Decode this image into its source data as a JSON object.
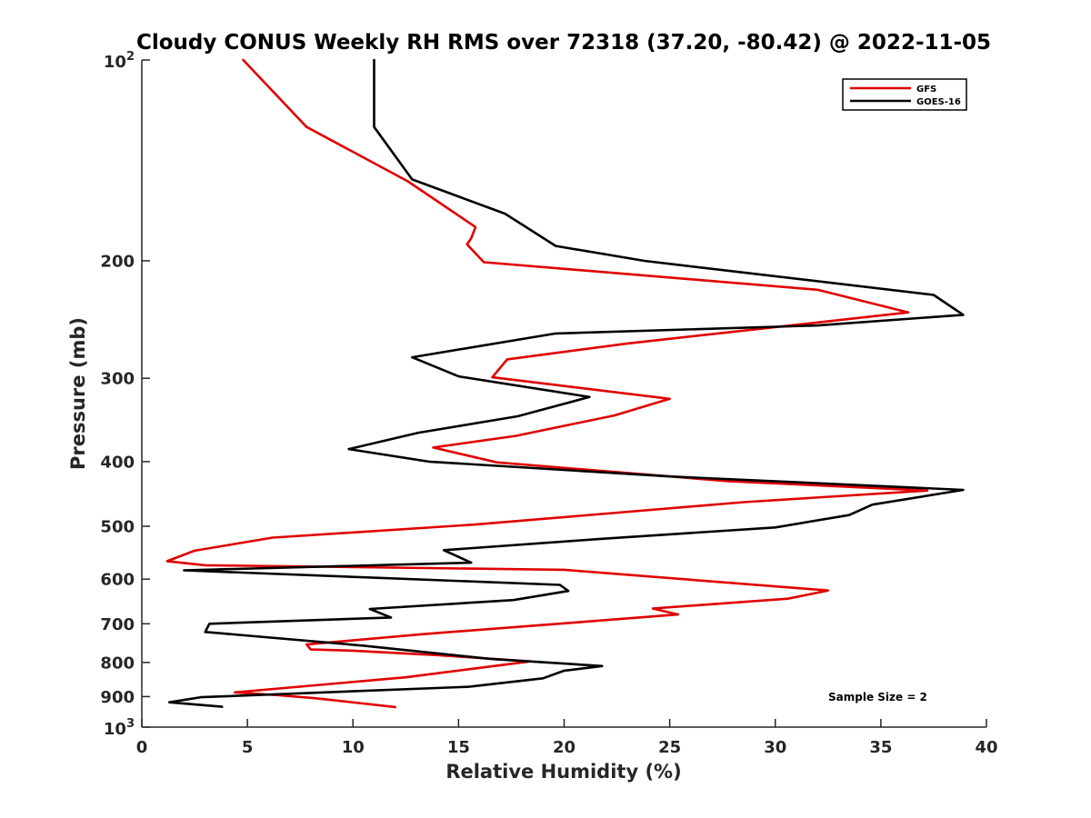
{
  "chart_data": {
    "type": "line",
    "title": "Cloudy CONUS Weekly RH RMS over 72318 (37.20, -80.42) @ 2022-11-05",
    "xlabel": "Relative Humidity (%)",
    "ylabel": "Pressure (mb)",
    "xlim": [
      0,
      40
    ],
    "ylim": [
      100,
      1000
    ],
    "y_scale": "log",
    "y_reversed": true,
    "x_ticks": [
      0,
      5,
      10,
      15,
      20,
      25,
      30,
      35,
      40
    ],
    "x_tick_labels": [
      "0",
      "5",
      "10",
      "15",
      "20",
      "25",
      "30",
      "35",
      "40"
    ],
    "y_ticks": [
      200,
      300,
      400,
      500,
      600,
      700,
      800,
      900
    ],
    "y_tick_labels": [
      "200",
      "300",
      "400",
      "500",
      "600",
      "700",
      "800",
      "900"
    ],
    "y_end_labels": [
      {
        "value": 100,
        "base": "10",
        "exponent": "2"
      },
      {
        "value": 1000,
        "base": "10",
        "exponent": "3"
      }
    ],
    "legend": {
      "location": "top-right"
    },
    "annotation": "Sample Size = 2",
    "series": [
      {
        "name": "GFS",
        "color": "#e00000",
        "x": [
          4.8,
          7.8,
          12.6,
          15.8,
          15.6,
          15.4,
          16.2,
          32.0,
          36.3,
          23.0,
          17.3,
          16.6,
          25.0,
          22.4,
          17.7,
          13.8,
          16.8,
          27.8,
          37.2,
          28.5,
          15.8,
          6.2,
          2.5,
          1.2,
          3.0,
          20.0,
          32.5,
          30.6,
          24.2,
          25.4,
          20.5,
          13.2,
          7.8,
          8.0,
          10.0,
          14.0,
          18.4,
          12.5,
          4.4,
          6.5,
          8.2,
          12.0
        ],
        "y": [
          100,
          126,
          152,
          178,
          185,
          189,
          201,
          221,
          239,
          266,
          281,
          299,
          322,
          341,
          366,
          381,
          401,
          428,
          442,
          460,
          497,
          520,
          544,
          564,
          572,
          581,
          624,
          642,
          664,
          678,
          697,
          726,
          752,
          765,
          768,
          780,
          797,
          842,
          887,
          896,
          905,
          933
        ]
      },
      {
        "name": "GOES-16",
        "color": "#000000",
        "x": [
          11.0,
          11.0,
          12.8,
          17.2,
          19.6,
          23.8,
          37.5,
          38.9,
          32.0,
          19.6,
          12.8,
          15.0,
          21.2,
          17.8,
          13.1,
          9.8,
          13.6,
          25.0,
          38.9,
          34.6,
          33.5,
          30.0,
          21.8,
          14.3,
          15.6,
          2.0,
          19.8,
          20.2,
          17.6,
          10.8,
          11.8,
          3.2,
          3.0,
          10.5,
          16.5,
          21.8,
          20.0,
          19.0,
          15.5,
          2.8,
          1.3,
          3.8
        ],
        "y": [
          100,
          126,
          151,
          170,
          190,
          200,
          225,
          241,
          250,
          257,
          279,
          298,
          320,
          342,
          362,
          383,
          400,
          421,
          441,
          464,
          481,
          502,
          522,
          543,
          567,
          582,
          612,
          625,
          645,
          665,
          685,
          700,
          720,
          755,
          790,
          810,
          823,
          845,
          870,
          902,
          918,
          932
        ]
      }
    ]
  }
}
